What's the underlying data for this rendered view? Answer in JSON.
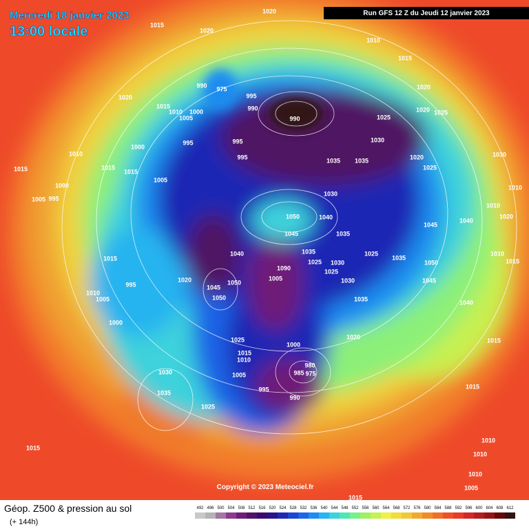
{
  "header": {
    "date": "Mercredi 18 janvier 2023",
    "time": "13:00 locale",
    "run": "Run GFS 12 Z du Jeudi 12 janvier 2023"
  },
  "copyright": "Copyright © 2023 Meteociel.fr",
  "footer": {
    "title": "Géop. Z500 & pression au sol",
    "lead": "(+ 144h)"
  },
  "scale": {
    "values": [
      492,
      496,
      500,
      504,
      508,
      512,
      516,
      520,
      524,
      528,
      532,
      536,
      540,
      544,
      548,
      552,
      556,
      560,
      564,
      568,
      572,
      576,
      580,
      584,
      588,
      592,
      596,
      600,
      604,
      608,
      612
    ],
    "colors": [
      "#c8c8c8",
      "#b4b4b4",
      "#a078a0",
      "#8c3c8c",
      "#6e1e78",
      "#501464",
      "#3c0a6e",
      "#28148c",
      "#1e28b4",
      "#1e46d2",
      "#1e64e6",
      "#1e8cf0",
      "#28b4f0",
      "#3cd2dc",
      "#50e6b4",
      "#78f08c",
      "#a0f064",
      "#c8f050",
      "#f0f046",
      "#f0dc3c",
      "#f0c83c",
      "#f0aa32",
      "#f08c28",
      "#f06e28",
      "#f05028",
      "#e63c28",
      "#d22828",
      "#b41e1e",
      "#961414",
      "#640a0a",
      "#321414"
    ]
  },
  "pressure_labels": [
    1020,
    1015,
    1020,
    1010,
    1015,
    1020,
    1015,
    1010,
    1000,
    1005,
    990,
    975,
    995,
    990,
    990,
    1025,
    1020,
    1020,
    1025,
    1030,
    995,
    1000,
    995,
    995,
    1035,
    1035,
    1020,
    1025,
    1030,
    1010,
    1015,
    1015,
    1015,
    1005,
    1000,
    1030,
    1010,
    1010,
    1005,
    995,
    1050,
    1040,
    1045,
    1040,
    1020,
    1045,
    1035,
    1035,
    1040,
    1015,
    1025,
    1035,
    1010,
    1015,
    1025,
    1030,
    1050,
    1025,
    1090,
    1020,
    995,
    1050,
    1045,
    1005,
    1030,
    1045,
    1010,
    1005,
    1050,
    1035,
    1040,
    1000,
    1020,
    1025,
    1000,
    1015,
    1015,
    1010,
    980,
    985,
    975,
    1030,
    1005,
    995,
    990,
    1035,
    1025,
    1015,
    1015,
    1010,
    1010,
    1010,
    1005,
    1015
  ]
}
